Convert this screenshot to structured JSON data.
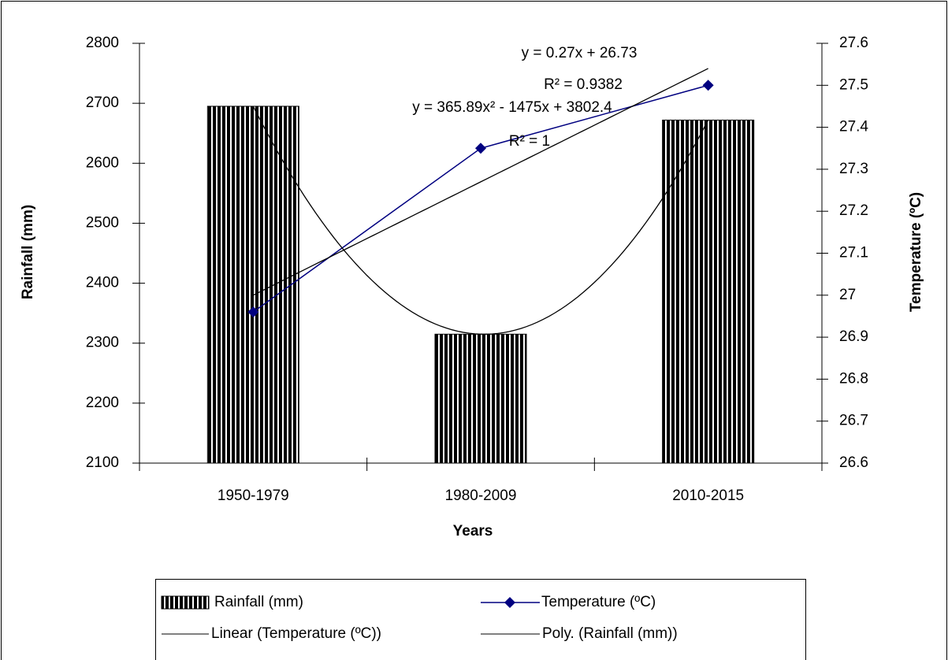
{
  "chart_data": {
    "type": "bar",
    "x_label": "Years",
    "y_label": "Rainfall (mm)",
    "y2_label": "Temperature (ºC)",
    "categories": [
      "1950-1979",
      "1980-2009",
      "2010-2015"
    ],
    "series": [
      {
        "name": "Rainfall (mm)",
        "type": "bar",
        "color": "#000000",
        "values": [
          2695,
          2315,
          2672
        ],
        "trendline": {
          "name": "Poly. (Rainfall (mm))",
          "type": "poly",
          "color": "#000000"
        }
      },
      {
        "name": "Temperature (ºC)",
        "type": "line",
        "axis": "y2",
        "color": "#000080",
        "values": [
          26.96,
          27.35,
          27.5
        ],
        "trendline": {
          "name": "Linear (Temperature (ºC))",
          "type": "linear",
          "color": "#000000"
        }
      }
    ],
    "ylim": [
      2100,
      2800
    ],
    "yticks": [
      2100,
      2200,
      2300,
      2400,
      2500,
      2600,
      2700,
      2800
    ],
    "y2lim": [
      26.6,
      27.6
    ],
    "y2ticks": [
      26.6,
      26.7,
      26.8,
      26.9,
      27,
      27.1,
      27.2,
      27.3,
      27.4,
      27.5,
      27.6
    ],
    "annotations": [
      "y = 0.27x + 26.73",
      "R² = 0.9382",
      "y = 365.89x² - 1475x + 3802.4",
      "R² = 1"
    ],
    "legend": "bottom"
  }
}
